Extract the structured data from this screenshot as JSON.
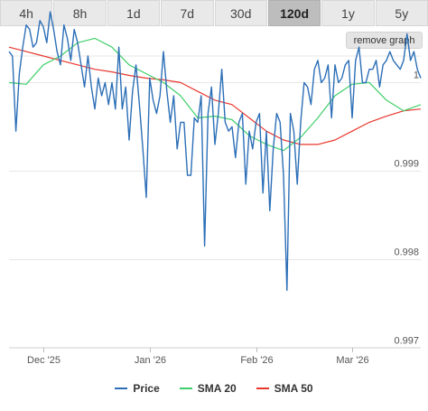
{
  "tabs": [
    {
      "label": "4h",
      "active": false
    },
    {
      "label": "8h",
      "active": false
    },
    {
      "label": "1d",
      "active": false
    },
    {
      "label": "7d",
      "active": false
    },
    {
      "label": "30d",
      "active": false
    },
    {
      "label": "120d",
      "active": true
    },
    {
      "label": "1y",
      "active": false
    },
    {
      "label": "5y",
      "active": false
    }
  ],
  "remove_graph_label": "remove graph",
  "legend": [
    {
      "label": "Price",
      "color": "#2c6fb7"
    },
    {
      "label": "SMA 20",
      "color": "#3fcf6a"
    },
    {
      "label": "SMA 50",
      "color": "#e8372e"
    }
  ],
  "chart_data": {
    "type": "line",
    "ylim": [
      0.997,
      1.0003
    ],
    "y_ticks": [
      {
        "value": 1.0,
        "label": "1"
      },
      {
        "value": 0.999,
        "label": "0.999"
      },
      {
        "value": 0.998,
        "label": "0.998"
      },
      {
        "value": 0.997,
        "label": "0.997"
      }
    ],
    "x_range": [
      0,
      120
    ],
    "x_ticks": [
      {
        "x": 10,
        "label": "Dec '25"
      },
      {
        "x": 41,
        "label": "Jan '26"
      },
      {
        "x": 72,
        "label": "Feb '26"
      },
      {
        "x": 100,
        "label": "Mar '26"
      }
    ],
    "grid": true,
    "legend_position": "bottom",
    "series": [
      {
        "name": "Price",
        "color": "#2c6fb7",
        "x": [
          0,
          1,
          2,
          3,
          4,
          5,
          6,
          7,
          8,
          9,
          10,
          11,
          12,
          13,
          14,
          15,
          16,
          17,
          18,
          19,
          20,
          21,
          22,
          23,
          24,
          25,
          26,
          27,
          28,
          29,
          30,
          31,
          32,
          33,
          34,
          35,
          36,
          37,
          38,
          39,
          40,
          41,
          42,
          43,
          44,
          45,
          46,
          47,
          48,
          49,
          50,
          51,
          52,
          53,
          54,
          55,
          56,
          57,
          58,
          59,
          60,
          61,
          62,
          63,
          64,
          65,
          66,
          67,
          68,
          69,
          70,
          71,
          72,
          73,
          74,
          75,
          76,
          77,
          78,
          79,
          80,
          81,
          82,
          83,
          84,
          85,
          86,
          87,
          88,
          89,
          90,
          91,
          92,
          93,
          94,
          95,
          96,
          97,
          98,
          99,
          100,
          101,
          102,
          103,
          104,
          105,
          106,
          107,
          108,
          109,
          110,
          111,
          112,
          113,
          114,
          115,
          116,
          117,
          118,
          119,
          120
        ],
        "values": [
          1.00035,
          1.0003,
          0.99945,
          1.0001,
          1.0004,
          1.00065,
          1.0006,
          1.0004,
          1.00045,
          1.0007,
          1.00063,
          1.00045,
          1.0008,
          1.0006,
          1.00035,
          1.0002,
          1.00065,
          1.0005,
          1.00025,
          1.0006,
          1.00045,
          1.0002,
          0.99995,
          1.0003,
          0.99995,
          0.9997,
          1.00005,
          0.99985,
          1.0,
          0.99975,
          1.0,
          0.9997,
          1.0004,
          0.9997,
          0.99995,
          0.99935,
          0.9999,
          1.0002,
          0.99975,
          0.99925,
          0.9987,
          1.00005,
          0.9998,
          0.99965,
          0.99985,
          1.00035,
          0.9999,
          0.99955,
          0.99985,
          0.99925,
          0.99955,
          0.99955,
          0.99895,
          0.99895,
          0.9996,
          0.99955,
          0.99985,
          0.99815,
          0.99965,
          0.99995,
          0.9993,
          0.99965,
          1.00015,
          0.99955,
          0.99945,
          0.9995,
          0.99915,
          0.99955,
          0.99965,
          0.99885,
          0.99945,
          0.99925,
          0.99955,
          0.99965,
          0.99875,
          0.99945,
          0.99855,
          0.99925,
          0.99965,
          0.99955,
          0.99895,
          0.99765,
          0.99965,
          0.99945,
          0.99885,
          0.99955,
          1.0,
          0.99995,
          0.99975,
          1.00015,
          1.00025,
          1.0,
          1.00005,
          1.0002,
          0.9996,
          1.0002,
          1.0,
          1.00005,
          1.0002,
          1.00025,
          0.9996,
          1.00025,
          1.0004,
          1.0,
          1.0,
          1.00015,
          1.00015,
          1.00025,
          0.99995,
          1.0002,
          1.00025,
          1.00035,
          1.00025,
          1.0002,
          1.00015,
          1.00025,
          1.00055,
          1.00025,
          1.00035,
          1.00015,
          1.00005
        ]
      },
      {
        "name": "SMA 20",
        "color": "#3fcf6a",
        "x": [
          0,
          5,
          10,
          15,
          20,
          25,
          30,
          35,
          40,
          45,
          50,
          55,
          60,
          65,
          70,
          75,
          80,
          85,
          90,
          95,
          100,
          105,
          110,
          115,
          120
        ],
        "values": [
          1.0,
          0.99998,
          1.0002,
          1.0003,
          1.00045,
          1.0005,
          1.0004,
          1.0002,
          1.0001,
          1.0,
          0.99985,
          0.9996,
          0.99962,
          0.99958,
          0.9994,
          0.9993,
          0.99923,
          0.99938,
          0.9996,
          0.99985,
          0.99998,
          1.0,
          0.9998,
          0.99968,
          0.99975
        ]
      },
      {
        "name": "SMA 50",
        "color": "#e8372e",
        "x": [
          0,
          5,
          10,
          15,
          20,
          25,
          30,
          35,
          40,
          45,
          50,
          55,
          60,
          65,
          70,
          75,
          80,
          85,
          90,
          95,
          100,
          105,
          110,
          115,
          120
        ],
        "values": [
          1.0004,
          1.00035,
          1.0003,
          1.00025,
          1.0002,
          1.00015,
          1.00012,
          1.00008,
          1.00005,
          1.00003,
          1.0,
          0.9999,
          0.9998,
          0.99975,
          0.9996,
          0.99945,
          0.99935,
          0.9993,
          0.9993,
          0.99935,
          0.99945,
          0.99955,
          0.99962,
          0.99968,
          0.9997
        ]
      }
    ]
  }
}
